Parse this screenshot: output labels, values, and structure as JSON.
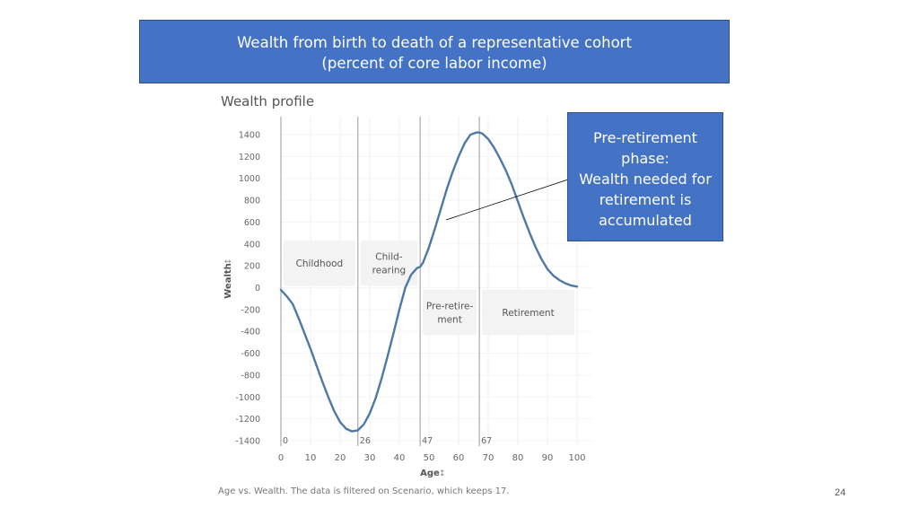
{
  "slide": {
    "title_line1": "Wealth from birth to death of a representative cohort",
    "title_line2": "(percent of  core labor income)",
    "callout_lines": [
      "Pre-retirement",
      "phase:",
      "Wealth needed for",
      "retirement is",
      "accumulated"
    ],
    "caption": "Age vs. Wealth. The data is filtered on Scenario, which keeps 17.",
    "page_number": "24"
  },
  "colors": {
    "title_box": "#4472c4",
    "series_line": "#4e79a7",
    "phase_box": "#f3f3f3"
  },
  "chart_data": {
    "type": "line",
    "title": "Wealth profile",
    "xlabel": "Age",
    "ylabel": "Wealth",
    "xlim": [
      0,
      100
    ],
    "ylim": [
      -1400,
      1400
    ],
    "x_ticks": [
      0,
      10,
      20,
      30,
      40,
      50,
      60,
      70,
      80,
      90,
      100
    ],
    "y_ticks": [
      1400,
      1200,
      1000,
      800,
      600,
      400,
      200,
      0,
      -200,
      -400,
      -600,
      -800,
      -1000,
      -1200,
      -1400
    ],
    "series": [
      {
        "x": [
          0,
          2,
          4,
          6,
          8,
          10,
          12,
          14,
          16,
          18,
          20,
          22,
          24,
          26,
          28,
          30,
          32,
          34,
          36,
          38,
          40,
          42,
          44,
          46,
          47,
          48,
          50,
          52,
          54,
          56,
          58,
          60,
          62,
          64,
          66,
          67,
          68,
          70,
          72,
          74,
          76,
          78,
          80,
          82,
          84,
          86,
          88,
          90,
          92,
          94,
          96,
          98,
          100
        ],
        "y": [
          -20,
          -80,
          -150,
          -280,
          -420,
          -560,
          -710,
          -860,
          -1000,
          -1130,
          -1230,
          -1290,
          -1315,
          -1305,
          -1250,
          -1150,
          -1010,
          -830,
          -630,
          -420,
          -200,
          0,
          120,
          180,
          190,
          230,
          370,
          540,
          720,
          900,
          1060,
          1200,
          1320,
          1400,
          1420,
          1420,
          1410,
          1360,
          1280,
          1180,
          1070,
          940,
          790,
          640,
          500,
          370,
          260,
          170,
          110,
          70,
          40,
          20,
          10
        ]
      }
    ],
    "age_markers": [
      {
        "age": 0,
        "label": "0"
      },
      {
        "age": 26,
        "label": "26"
      },
      {
        "age": 47,
        "label": "47"
      },
      {
        "age": 67,
        "label": "67"
      }
    ],
    "phases": [
      {
        "label_lines": [
          "Childhood"
        ],
        "x_from": 0,
        "x_to": 26,
        "y_from": 0,
        "y_to": 450
      },
      {
        "label_lines": [
          "Child-",
          "rearing"
        ],
        "x_from": 26,
        "x_to": 47,
        "y_from": 0,
        "y_to": 450
      },
      {
        "label_lines": [
          "Pre-retire-",
          "ment"
        ],
        "x_from": 47,
        "x_to": 67,
        "y_from": -450,
        "y_to": 0
      },
      {
        "label_lines": [
          "Retirement"
        ],
        "x_from": 67,
        "x_to": 100,
        "y_from": -450,
        "y_to": 0
      }
    ],
    "grid": true,
    "legend": "none"
  }
}
